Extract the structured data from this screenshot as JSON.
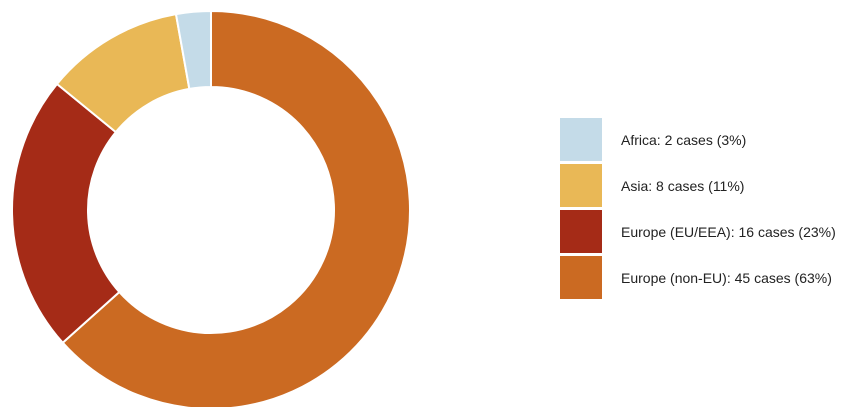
{
  "chart_data": {
    "type": "pie",
    "variant": "donut",
    "title": "",
    "categories": [
      "Africa",
      "Asia",
      "Europe (EU/EEA)",
      "Europe (non-EU)"
    ],
    "values": [
      2,
      8,
      16,
      45
    ],
    "colors": [
      "#c4dbe8",
      "#e9b856",
      "#a52b17",
      "#cb6a22"
    ],
    "legend": {
      "placement": "right",
      "entries": [
        "Africa: 2 cases (3%)",
        "Asia: 8 cases (11%)",
        "Europe (EU/EEA): 16 cases (23%)",
        "Europe (non-EU): 45 cases (63%)"
      ]
    },
    "start_angle": "top",
    "direction": "clockwise",
    "order": "Europe (non-EU) first, then Europe (EU/EEA), Asia, Africa"
  }
}
